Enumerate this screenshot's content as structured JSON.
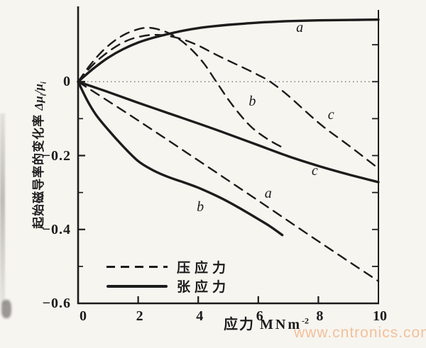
{
  "figure": {
    "y_label_cn": "起始磁导率的变化率",
    "y_sym": {
      "d": "Δμ",
      "s1": "i",
      "m": "/μ",
      "s2": "i"
    },
    "x_label_cn": "应力",
    "x_unit": "MNm",
    "x_exp": "-2",
    "watermark": "www.cntronics.com",
    "ink_color": "#1c1c1c",
    "paper_color": "#f7f5f0",
    "watermark_color": "#f3c09a"
  },
  "chart_data": {
    "type": "line",
    "title": "",
    "xlabel": "应力 MNm⁻²",
    "ylabel": "起始磁导率的变化率 Δμᵢ/μᵢ",
    "xlim": [
      0,
      10
    ],
    "ylim": [
      -0.6,
      0.2
    ],
    "grid": false,
    "zero_line": true,
    "x_tick_values": [
      0,
      2,
      4,
      6,
      8,
      10
    ],
    "x_tick_labels": [
      "0",
      "2",
      "4",
      "6",
      "8",
      "10"
    ],
    "x_tick_marks": [
      2,
      4,
      6,
      8
    ],
    "y_tick_values": [
      0,
      -0.2,
      -0.4,
      -0.6
    ],
    "y_tick_labels": [
      "0",
      "−0.2",
      "−0.4",
      "−0.6"
    ],
    "y_minor_tick_values": [
      -0.1,
      -0.3,
      -0.5
    ],
    "right_axis_tick_values": [
      0.1,
      0,
      -0.1,
      -0.2,
      -0.3,
      -0.4,
      -0.5
    ],
    "legend": [
      {
        "label": "压应力",
        "style": "dashed"
      },
      {
        "label": "张应力",
        "style": "solid"
      }
    ],
    "series": [
      {
        "name": "tensile-a",
        "curve_label": "a",
        "style": "solid",
        "stress_type": "张应力",
        "points": [
          [
            0,
            0
          ],
          [
            0.5,
            0.035
          ],
          [
            1,
            0.065
          ],
          [
            1.5,
            0.088
          ],
          [
            2,
            0.106
          ],
          [
            2.5,
            0.119
          ],
          [
            3,
            0.129
          ],
          [
            3.5,
            0.138
          ],
          [
            4,
            0.145
          ],
          [
            4.5,
            0.15
          ],
          [
            5,
            0.154
          ],
          [
            5.5,
            0.157
          ],
          [
            6,
            0.16
          ],
          [
            6.5,
            0.162
          ],
          [
            7,
            0.164
          ],
          [
            8,
            0.166
          ],
          [
            9,
            0.167
          ],
          [
            10,
            0.168
          ]
        ]
      },
      {
        "name": "tensile-b",
        "curve_label": "b",
        "style": "solid",
        "stress_type": "张应力",
        "points": [
          [
            0,
            0
          ],
          [
            0.3,
            -0.05
          ],
          [
            0.6,
            -0.09
          ],
          [
            1,
            -0.13
          ],
          [
            1.5,
            -0.175
          ],
          [
            2,
            -0.215
          ],
          [
            2.5,
            -0.24
          ],
          [
            3,
            -0.258
          ],
          [
            3.5,
            -0.272
          ],
          [
            4,
            -0.287
          ],
          [
            4.5,
            -0.305
          ],
          [
            5,
            -0.325
          ],
          [
            5.5,
            -0.348
          ],
          [
            6,
            -0.372
          ],
          [
            6.4,
            -0.392
          ],
          [
            6.8,
            -0.415
          ]
        ]
      },
      {
        "name": "tensile-c",
        "curve_label": "c",
        "style": "solid",
        "stress_type": "张应力",
        "points": [
          [
            0,
            0
          ],
          [
            0.5,
            -0.014
          ],
          [
            1,
            -0.028
          ],
          [
            2,
            -0.057
          ],
          [
            3,
            -0.085
          ],
          [
            4,
            -0.113
          ],
          [
            5,
            -0.142
          ],
          [
            6,
            -0.172
          ],
          [
            7,
            -0.202
          ],
          [
            8,
            -0.228
          ],
          [
            9,
            -0.251
          ],
          [
            10,
            -0.272
          ]
        ]
      },
      {
        "name": "compressive-a",
        "curve_label": "a",
        "style": "dashed",
        "stress_type": "压应力",
        "points": [
          [
            0,
            0
          ],
          [
            2,
            -0.105
          ],
          [
            4,
            -0.213
          ],
          [
            6,
            -0.322
          ],
          [
            8,
            -0.432
          ],
          [
            10,
            -0.54
          ]
        ]
      },
      {
        "name": "compressive-b",
        "curve_label": "b",
        "style": "dashed",
        "stress_type": "压应力",
        "points": [
          [
            0,
            0
          ],
          [
            0.4,
            0.045
          ],
          [
            0.8,
            0.082
          ],
          [
            1.2,
            0.11
          ],
          [
            1.6,
            0.13
          ],
          [
            2,
            0.142
          ],
          [
            2.3,
            0.146
          ],
          [
            2.6,
            0.143
          ],
          [
            3,
            0.132
          ],
          [
            3.4,
            0.113
          ],
          [
            3.8,
            0.085
          ],
          [
            4.2,
            0.048
          ],
          [
            4.6,
            0
          ],
          [
            5,
            -0.048
          ],
          [
            5.4,
            -0.09
          ],
          [
            5.8,
            -0.125
          ],
          [
            6.3,
            -0.155
          ],
          [
            6.8,
            -0.178
          ]
        ]
      },
      {
        "name": "compressive-c",
        "curve_label": "c",
        "style": "dashed",
        "stress_type": "压应力",
        "points": [
          [
            0,
            0
          ],
          [
            0.4,
            0.038
          ],
          [
            0.8,
            0.068
          ],
          [
            1.2,
            0.092
          ],
          [
            1.6,
            0.11
          ],
          [
            2,
            0.121
          ],
          [
            2.5,
            0.127
          ],
          [
            3,
            0.124
          ],
          [
            3.5,
            0.114
          ],
          [
            4,
            0.098
          ],
          [
            4.5,
            0.077
          ],
          [
            5,
            0.057
          ],
          [
            5.5,
            0.038
          ],
          [
            6,
            0.018
          ],
          [
            6.4,
            0
          ],
          [
            7,
            -0.038
          ],
          [
            7.6,
            -0.082
          ],
          [
            8.2,
            -0.124
          ],
          [
            9,
            -0.172
          ],
          [
            10,
            -0.235
          ]
        ]
      }
    ],
    "curve_labels": [
      {
        "text": "a",
        "x": 7.38,
        "y": 0.142
      },
      {
        "text": "b",
        "x": 5.8,
        "y": -0.058
      },
      {
        "text": "c",
        "x": 8.42,
        "y": -0.093
      },
      {
        "text": "c",
        "x": 7.88,
        "y": -0.246
      },
      {
        "text": "a",
        "x": 6.33,
        "y": -0.306
      },
      {
        "text": "b",
        "x": 4.07,
        "y": -0.343
      }
    ]
  }
}
